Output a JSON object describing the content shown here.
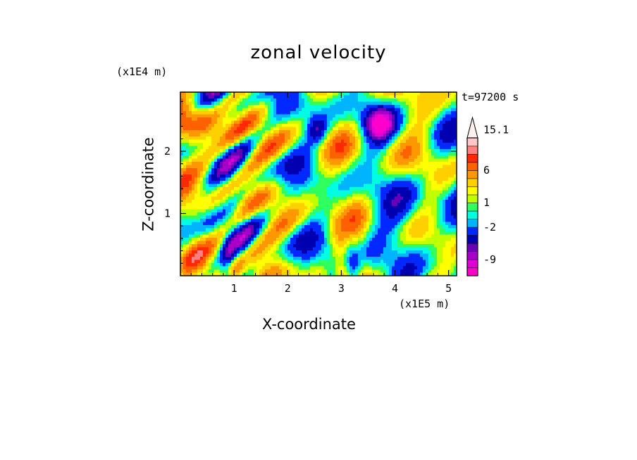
{
  "chart_data": {
    "type": "heatmap",
    "title": "zonal velocity",
    "xlabel": "X-coordinate",
    "ylabel": "Z-coordinate",
    "x_unit_label": "(x1E5 m)",
    "y_unit_label": "(x1E4 m)",
    "time_label": "t=97200 s",
    "xlim": [
      0,
      5.15
    ],
    "ylim": [
      0,
      2.95
    ],
    "x_ticks": [
      1,
      2,
      3,
      4,
      5
    ],
    "x_tick_labels": [
      "1",
      "2",
      "3",
      "4",
      "5"
    ],
    "y_ticks": [
      1,
      2
    ],
    "y_tick_labels": [
      "1",
      "2"
    ],
    "colorbar": {
      "levels_low_to_high": [
        -12,
        -10.5,
        -9,
        -7.5,
        -6,
        -4,
        -2,
        -1,
        0,
        1,
        2,
        3,
        4.5,
        6,
        7.5,
        9,
        10.5,
        13,
        15.1
      ],
      "label_values": [
        "15.1",
        "6",
        "1",
        "-2",
        "-9"
      ],
      "colors_low_to_high": [
        "#ff00cc",
        "#e000d8",
        "#a800c8",
        "#6800b8",
        "#0000b0",
        "#0028ff",
        "#00b4ff",
        "#00ffe0",
        "#30ff60",
        "#c0ff00",
        "#ffff00",
        "#ffd000",
        "#ff9800",
        "#ff6000",
        "#ff2800",
        "#ff8080",
        "#ffc8c8"
      ],
      "max_arrow": true
    },
    "grid": false,
    "legend": "colorbar-right"
  }
}
